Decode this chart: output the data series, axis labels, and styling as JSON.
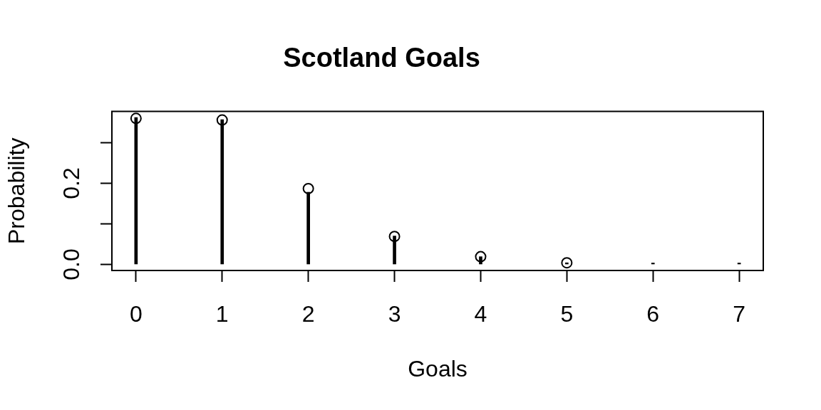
{
  "chart_data": {
    "type": "bar",
    "title": "Scotland Goals",
    "xlabel": "Goals",
    "ylabel": "Probability",
    "x": [
      0,
      1,
      2,
      3,
      4,
      5,
      6,
      7
    ],
    "series": [
      {
        "color": "#000000",
        "values": [
          0.362,
          0.357,
          0.178,
          0.07,
          0.019,
          0.004,
          0.002,
          0.002
        ]
      },
      {
        "type": "scatter",
        "color": "#000000",
        "values": [
          0.36,
          0.356,
          0.187,
          0.069,
          0.019,
          0.004,
          null,
          null
        ]
      }
    ],
    "xlim": [
      -0.28,
      7.28
    ],
    "ylim": [
      -0.015,
      0.377
    ],
    "xticks": [
      0,
      1,
      2,
      3,
      4,
      5,
      6,
      7
    ],
    "yticks": [
      {
        "value": 0,
        "label": "0.0"
      },
      {
        "value": 0.1,
        "label": null
      },
      0.2,
      {
        "value": 0.3,
        "label": null
      }
    ],
    "marker": "circle",
    "grid": false,
    "legend": false
  }
}
